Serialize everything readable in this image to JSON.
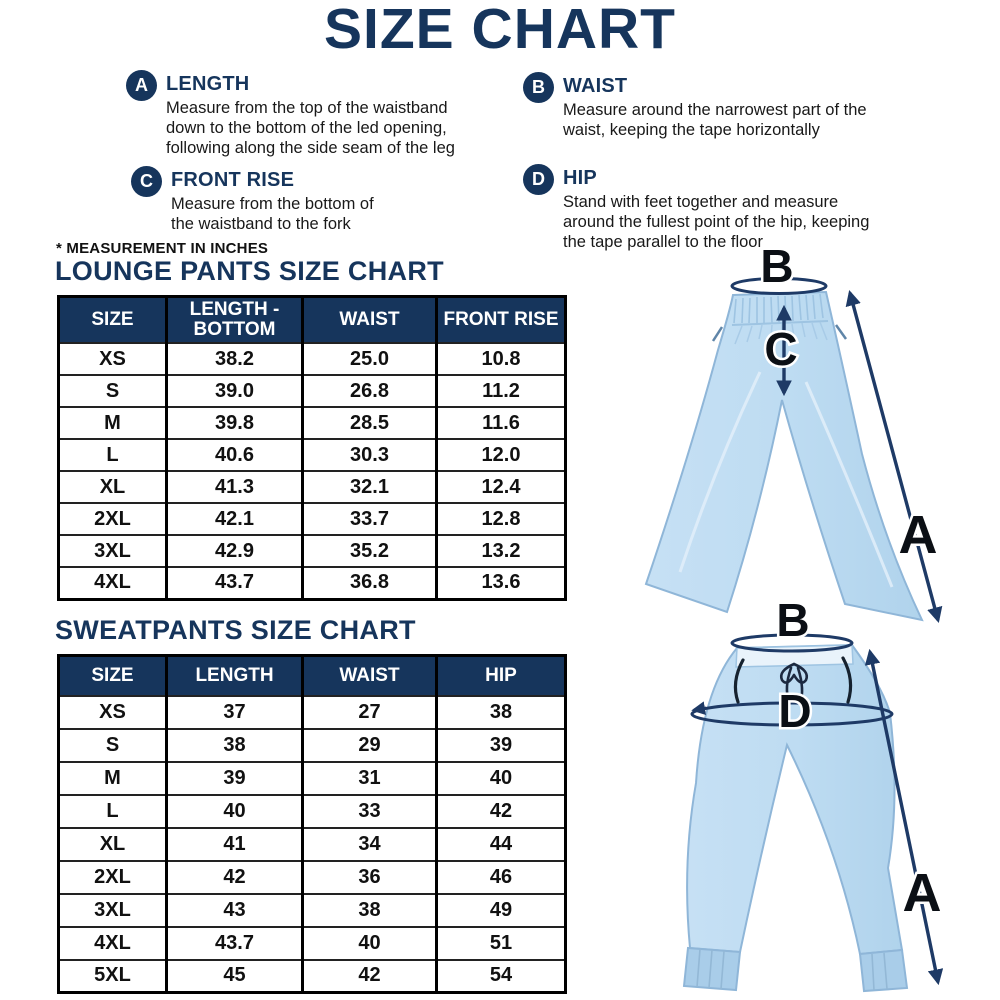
{
  "page": {
    "title": "SIZE CHART",
    "note": "* MEASUREMENT IN INCHES"
  },
  "colors": {
    "navy": "#16355c",
    "arrow_navy": "#1e3a66",
    "pants_blue": "#bedcf2",
    "pants_blue_dark": "#a9cde9",
    "text_black": "#111111"
  },
  "definitions": [
    {
      "letter": "A",
      "term": "LENGTH",
      "description": "Measure from the top of the waistband down to the bottom of the led opening, following along the side seam of the leg"
    },
    {
      "letter": "B",
      "term": "WAIST",
      "description": "Measure around the narrowest part of the waist, keeping the tape horizontally"
    },
    {
      "letter": "C",
      "term": "FRONT RISE",
      "description": "Measure from the bottom of the waistband to the fork"
    },
    {
      "letter": "D",
      "term": "HIP",
      "description": "Stand with feet together and measure around the fullest point of the hip, keeping the tape parallel to the floor"
    }
  ],
  "lounge_table": {
    "title": "LOUNGE PANTS SIZE CHART",
    "columns": [
      "SIZE",
      "LENGTH - BOTTOM",
      "WAIST",
      "FRONT RISE"
    ],
    "rows": [
      [
        "XS",
        "38.2",
        "25.0",
        "10.8"
      ],
      [
        "S",
        "39.0",
        "26.8",
        "11.2"
      ],
      [
        "M",
        "39.8",
        "28.5",
        "11.6"
      ],
      [
        "L",
        "40.6",
        "30.3",
        "12.0"
      ],
      [
        "XL",
        "41.3",
        "32.1",
        "12.4"
      ],
      [
        "2XL",
        "42.1",
        "33.7",
        "12.8"
      ],
      [
        "3XL",
        "42.9",
        "35.2",
        "13.2"
      ],
      [
        "4XL",
        "43.7",
        "36.8",
        "13.6"
      ]
    ]
  },
  "sweat_table": {
    "title": "SWEATPANTS SIZE CHART",
    "columns": [
      "SIZE",
      "LENGTH",
      "WAIST",
      "HIP"
    ],
    "rows": [
      [
        "XS",
        "37",
        "27",
        "38"
      ],
      [
        "S",
        "38",
        "29",
        "39"
      ],
      [
        "M",
        "39",
        "31",
        "40"
      ],
      [
        "L",
        "40",
        "33",
        "42"
      ],
      [
        "XL",
        "41",
        "34",
        "44"
      ],
      [
        "2XL",
        "42",
        "36",
        "46"
      ],
      [
        "3XL",
        "43",
        "38",
        "49"
      ],
      [
        "4XL",
        "43.7",
        "40",
        "51"
      ],
      [
        "5XL",
        "45",
        "42",
        "54"
      ]
    ]
  },
  "figures": {
    "lounge_pants": {
      "waist_label": "B",
      "front_rise_label": "C",
      "length_label": "A"
    },
    "sweatpants": {
      "waist_label": "B",
      "hip_label": "D",
      "length_label": "A"
    }
  }
}
